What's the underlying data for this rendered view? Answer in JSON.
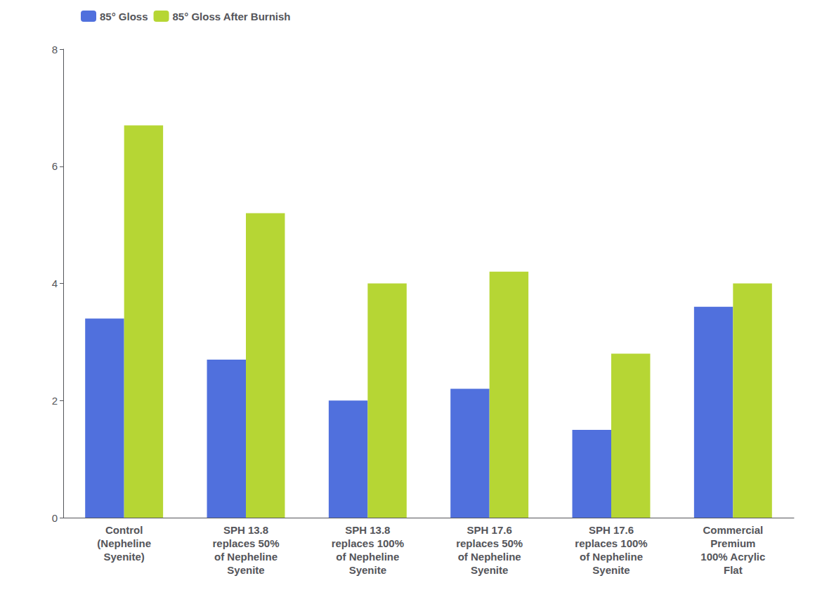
{
  "chart_data": {
    "type": "bar",
    "categories": [
      "Control\n(Nepheline\nSyenite)",
      "SPH 13.8\nreplaces 50%\nof Nepheline\nSyenite",
      "SPH 13.8\nreplaces 100%\nof Nepheline\nSyenite",
      "SPH 17.6\nreplaces 50%\nof Nepheline\nSyenite",
      "SPH 17.6\nreplaces 100%\nof Nepheline\nSyenite",
      "Commercial\nPremium\n100% Acrylic\nFlat"
    ],
    "series": [
      {
        "name": "85° Gloss",
        "values": [
          3.4,
          2.7,
          2.0,
          2.2,
          1.5,
          3.6
        ]
      },
      {
        "name": "85° Gloss After Burnish",
        "values": [
          6.7,
          5.2,
          4.0,
          4.2,
          2.8,
          4.0
        ]
      }
    ],
    "ylim": [
      0,
      8
    ],
    "yticks": [
      0,
      2,
      4,
      6,
      8
    ],
    "grid": false,
    "legend": "upper left"
  }
}
